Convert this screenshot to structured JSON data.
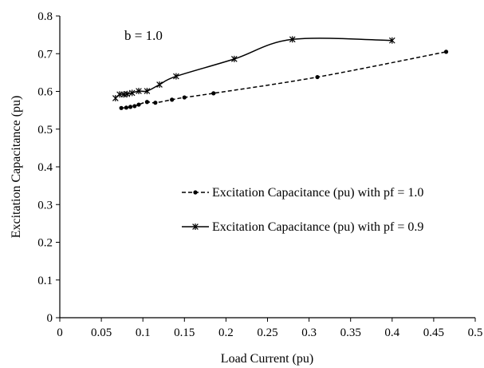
{
  "chart_data": {
    "type": "line",
    "xlabel": "Load Current (pu)",
    "ylabel": "Excitation Capacitance (pu)",
    "xlim": [
      0,
      0.5
    ],
    "ylim": [
      0,
      0.8
    ],
    "x_ticks": [
      "0",
      "0.05",
      "0.1",
      "0.15",
      "0.2",
      "0.25",
      "0.3",
      "0.35",
      "0.4",
      "0.45",
      "0.5"
    ],
    "y_ticks": [
      "0",
      "0.1",
      "0.2",
      "0.3",
      "0.4",
      "0.5",
      "0.6",
      "0.7",
      "0.8"
    ],
    "annotation": "b = 1.0",
    "grid": false,
    "legend_position": "right",
    "series": [
      {
        "name": "Excitation Capacitance (pu) with pf = 1.0",
        "style": "dashed",
        "marker": "dot",
        "color": "#000000",
        "points": [
          [
            0.074,
            0.556
          ],
          [
            0.08,
            0.557
          ],
          [
            0.085,
            0.559
          ],
          [
            0.09,
            0.561
          ],
          [
            0.095,
            0.565
          ],
          [
            0.105,
            0.572
          ],
          [
            0.115,
            0.57
          ],
          [
            0.135,
            0.578
          ],
          [
            0.15,
            0.584
          ],
          [
            0.185,
            0.595
          ],
          [
            0.31,
            0.638
          ],
          [
            0.465,
            0.705
          ]
        ]
      },
      {
        "name": "Excitation Capacitance (pu) with pf = 0.9",
        "style": "solid",
        "marker": "star",
        "color": "#000000",
        "points": [
          [
            0.067,
            0.582
          ],
          [
            0.072,
            0.592
          ],
          [
            0.077,
            0.592
          ],
          [
            0.081,
            0.593
          ],
          [
            0.087,
            0.596
          ],
          [
            0.095,
            0.601
          ],
          [
            0.105,
            0.601
          ],
          [
            0.12,
            0.618
          ],
          [
            0.14,
            0.64
          ],
          [
            0.21,
            0.686
          ],
          [
            0.28,
            0.738
          ],
          [
            0.4,
            0.735
          ]
        ]
      }
    ]
  }
}
